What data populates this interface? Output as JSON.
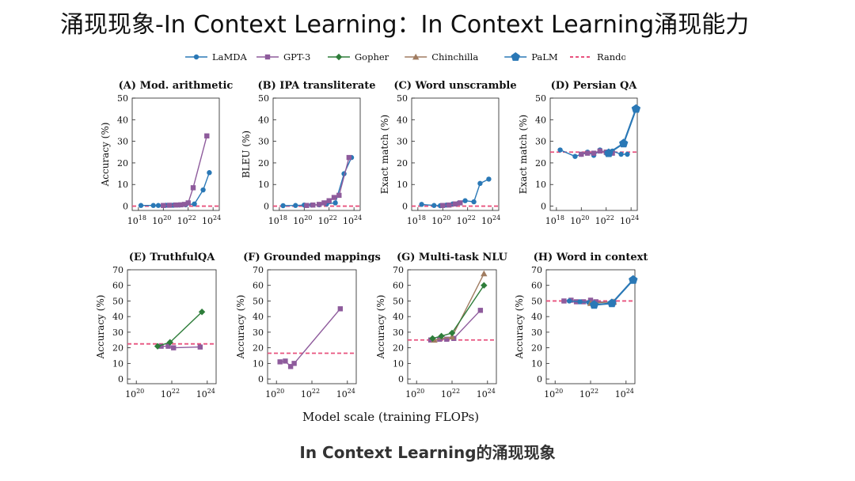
{
  "slide": {
    "title": "涌现现象-In Context Learning：In Context Learning涌现能力",
    "caption": "In Context Learning的涌现现象",
    "xaxis_label": "Model scale (training FLOPs)"
  },
  "colors": {
    "LaMDA": "#2a78b6",
    "GPT-3": "#8e5b9c",
    "Gopher": "#2e7d3a",
    "Chinchilla": "#a07c61",
    "PaLM": "#2a78b6",
    "Random": "#e8527e"
  },
  "legend": [
    {
      "name": "LaMDA",
      "marker": "circle",
      "dashed": false
    },
    {
      "name": "GPT-3",
      "marker": "square",
      "dashed": false
    },
    {
      "name": "Gopher",
      "marker": "diamond",
      "dashed": false
    },
    {
      "name": "Chinchilla",
      "marker": "triangle",
      "dashed": false
    },
    {
      "name": "PaLM",
      "marker": "pentagon",
      "dashed": false
    },
    {
      "name": "Random",
      "marker": "none",
      "dashed": true
    }
  ],
  "chart_data": [
    {
      "type": "line",
      "title": "(A) Mod. arithmetic",
      "ylabel": "Accuracy (%)",
      "xscale": "log",
      "xlim_exp": [
        17.5,
        24.5
      ],
      "xticks_exp": [
        18,
        20,
        22,
        24
      ],
      "ylim": [
        -2,
        50
      ],
      "yticks": [
        0,
        10,
        20,
        30,
        40,
        50
      ],
      "random": 0,
      "series": [
        {
          "name": "LaMDA",
          "points": [
            [
              18.2,
              0.3
            ],
            [
              19.2,
              0.3
            ],
            [
              19.6,
              0.3
            ],
            [
              20.2,
              0.4
            ],
            [
              20.8,
              0.4
            ],
            [
              21.3,
              0.5
            ],
            [
              21.8,
              0.6
            ],
            [
              22.5,
              1.0
            ],
            [
              23.2,
              7.5
            ],
            [
              23.7,
              15.5
            ]
          ]
        },
        {
          "name": "GPT-3",
          "points": [
            [
              20.0,
              0.3
            ],
            [
              20.5,
              0.4
            ],
            [
              21.0,
              0.5
            ],
            [
              21.4,
              0.6
            ],
            [
              21.7,
              0.8
            ],
            [
              22.0,
              1.5
            ],
            [
              22.4,
              8.5
            ],
            [
              23.5,
              32.5
            ]
          ]
        }
      ]
    },
    {
      "type": "line",
      "title": "(B) IPA transliterate",
      "ylabel": "BLEU (%)",
      "xscale": "log",
      "xlim_exp": [
        17.5,
        24.5
      ],
      "xticks_exp": [
        18,
        20,
        22,
        24
      ],
      "ylim": [
        -2,
        50
      ],
      "yticks": [
        0,
        10,
        20,
        30,
        40,
        50
      ],
      "random": 0,
      "series": [
        {
          "name": "LaMDA",
          "points": [
            [
              18.3,
              0.2
            ],
            [
              19.3,
              0.3
            ],
            [
              20.0,
              0.5
            ],
            [
              20.6,
              0.5
            ],
            [
              21.2,
              0.6
            ],
            [
              21.8,
              1.0
            ],
            [
              22.5,
              1.5
            ],
            [
              23.2,
              15.0
            ],
            [
              23.8,
              22.5
            ]
          ]
        },
        {
          "name": "GPT-3",
          "points": [
            [
              20.2,
              0.3
            ],
            [
              20.7,
              0.5
            ],
            [
              21.2,
              0.8
            ],
            [
              21.6,
              1.5
            ],
            [
              22.0,
              2.5
            ],
            [
              22.4,
              4.0
            ],
            [
              22.8,
              5.0
            ],
            [
              23.6,
              22.5
            ]
          ]
        }
      ]
    },
    {
      "type": "line",
      "title": "(C) Word unscramble",
      "ylabel": "Exact match (%)",
      "xscale": "log",
      "xlim_exp": [
        17.5,
        24.5
      ],
      "xticks_exp": [
        18,
        20,
        22,
        24
      ],
      "ylim": [
        -2,
        50
      ],
      "yticks": [
        0,
        10,
        20,
        30,
        40,
        50
      ],
      "random": 0,
      "series": [
        {
          "name": "LaMDA",
          "points": [
            [
              18.3,
              0.8
            ],
            [
              19.3,
              0.3
            ],
            [
              19.8,
              0.2
            ],
            [
              20.3,
              0.5
            ],
            [
              20.8,
              1.0
            ],
            [
              21.3,
              1.5
            ],
            [
              21.8,
              2.5
            ],
            [
              22.5,
              2.0
            ],
            [
              23.0,
              10.5
            ],
            [
              23.7,
              12.5
            ]
          ]
        },
        {
          "name": "GPT-3",
          "points": [
            [
              20.0,
              0.3
            ],
            [
              20.5,
              0.5
            ],
            [
              21.0,
              1.0
            ],
            [
              21.4,
              1.5
            ]
          ]
        }
      ]
    },
    {
      "type": "line",
      "title": "(D) Persian QA",
      "ylabel": "Exact match (%)",
      "xscale": "log",
      "xlim_exp": [
        17.5,
        24.5
      ],
      "xticks_exp": [
        18,
        20,
        22,
        24
      ],
      "ylim": [
        -2,
        50
      ],
      "yticks": [
        0,
        10,
        20,
        30,
        40,
        50
      ],
      "random": 25,
      "series": [
        {
          "name": "LaMDA",
          "points": [
            [
              18.3,
              26.0
            ],
            [
              19.5,
              23.0
            ],
            [
              20.0,
              24.0
            ],
            [
              20.5,
              25.0
            ],
            [
              21.0,
              23.5
            ],
            [
              21.5,
              26.0
            ],
            [
              22.0,
              24.5
            ],
            [
              22.5,
              25.5
            ],
            [
              23.2,
              24.0
            ],
            [
              23.7,
              24.0
            ]
          ]
        },
        {
          "name": "GPT-3",
          "points": [
            [
              20.0,
              24.0
            ],
            [
              20.5,
              24.5
            ],
            [
              21.0,
              24.5
            ],
            [
              21.5,
              25.5
            ],
            [
              22.0,
              25.0
            ],
            [
              22.5,
              24.5
            ]
          ]
        },
        {
          "name": "PaLM",
          "points": [
            [
              22.2,
              24.5
            ],
            [
              23.4,
              29.0
            ],
            [
              24.4,
              45.0
            ]
          ]
        }
      ]
    },
    {
      "type": "line",
      "title": "(E) TruthfulQA",
      "ylabel": "Accuracy (%)",
      "xscale": "log",
      "xlim_exp": [
        19.5,
        24.5
      ],
      "xticks_exp": [
        20,
        22,
        24
      ],
      "ylim": [
        -3,
        70
      ],
      "yticks": [
        0,
        10,
        20,
        30,
        40,
        50,
        60,
        70
      ],
      "random": 22.5,
      "series": [
        {
          "name": "GPT-3",
          "points": [
            [
              21.4,
              21.0
            ],
            [
              21.8,
              21.0
            ],
            [
              22.1,
              20.0
            ],
            [
              23.6,
              20.5
            ]
          ]
        },
        {
          "name": "Gopher",
          "points": [
            [
              21.2,
              21.0
            ],
            [
              21.9,
              23.5
            ],
            [
              23.7,
              43.0
            ]
          ]
        }
      ]
    },
    {
      "type": "line",
      "title": "(F) Grounded mappings",
      "ylabel": "Accuracy (%)",
      "xscale": "log",
      "xlim_exp": [
        19.5,
        24.5
      ],
      "xticks_exp": [
        20,
        22,
        24
      ],
      "ylim": [
        -3,
        70
      ],
      "yticks": [
        0,
        10,
        20,
        30,
        40,
        50,
        60,
        70
      ],
      "random": 16.5,
      "series": [
        {
          "name": "GPT-3",
          "points": [
            [
              20.2,
              11.0
            ],
            [
              20.5,
              11.5
            ],
            [
              20.8,
              8.0
            ],
            [
              21.0,
              10.0
            ],
            [
              23.6,
              45.0
            ]
          ]
        }
      ]
    },
    {
      "type": "line",
      "title": "(G) Multi-task NLU",
      "ylabel": "Accuracy (%)",
      "xscale": "log",
      "xlim_exp": [
        19.5,
        24.5
      ],
      "xticks_exp": [
        20,
        22,
        24
      ],
      "ylim": [
        -3,
        70
      ],
      "yticks": [
        0,
        10,
        20,
        30,
        40,
        50,
        60,
        70
      ],
      "random": 25,
      "series": [
        {
          "name": "GPT-3",
          "points": [
            [
              20.8,
              25.0
            ],
            [
              21.3,
              25.5
            ],
            [
              21.7,
              25.5
            ],
            [
              22.1,
              26.0
            ],
            [
              23.6,
              44.0
            ]
          ]
        },
        {
          "name": "Chinchilla",
          "points": [
            [
              21.0,
              25.0
            ],
            [
              22.0,
              27.0
            ],
            [
              23.8,
              67.5
            ]
          ]
        },
        {
          "name": "Gopher",
          "points": [
            [
              20.9,
              26.0
            ],
            [
              21.4,
              27.5
            ],
            [
              22.0,
              29.5
            ],
            [
              23.8,
              60.0
            ]
          ]
        }
      ]
    },
    {
      "type": "line",
      "title": "(H) Word in context",
      "ylabel": "Accuracy (%)",
      "xscale": "log",
      "xlim_exp": [
        19.5,
        24.5
      ],
      "xticks_exp": [
        20,
        22,
        24
      ],
      "ylim": [
        -3,
        70
      ],
      "yticks": [
        0,
        10,
        20,
        30,
        40,
        50,
        60,
        70
      ],
      "random": 50,
      "series": [
        {
          "name": "GPT-3",
          "points": [
            [
              20.5,
              50.0
            ],
            [
              20.9,
              50.5
            ],
            [
              21.2,
              49.5
            ],
            [
              21.6,
              49.5
            ],
            [
              22.0,
              50.5
            ],
            [
              22.3,
              49.5
            ],
            [
              23.3,
              49.0
            ]
          ]
        },
        {
          "name": "LaMDA",
          "points": [
            [
              20.8,
              50.0
            ],
            [
              21.4,
              49.5
            ],
            [
              21.9,
              49.0
            ]
          ]
        },
        {
          "name": "Chinchilla",
          "points": [
            [
              22.0,
              48.5
            ],
            [
              23.3,
              49.5
            ]
          ]
        },
        {
          "name": "PaLM",
          "points": [
            [
              22.2,
              47.5
            ],
            [
              23.2,
              48.5
            ],
            [
              24.4,
              63.5
            ]
          ]
        }
      ]
    }
  ]
}
